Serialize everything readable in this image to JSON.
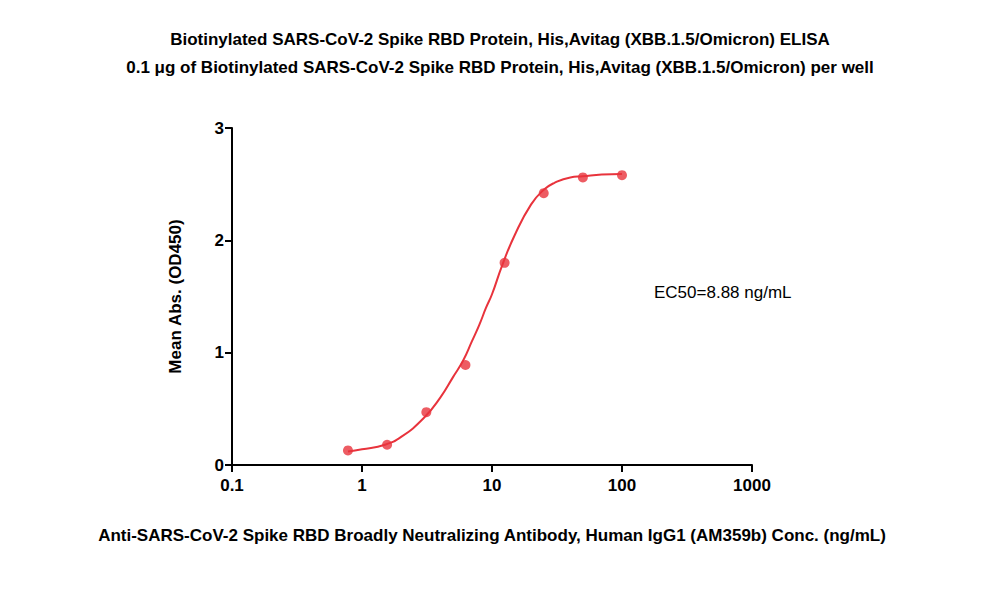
{
  "chart_data": {
    "type": "scatter",
    "title": "Biotinylated SARS-CoV-2 Spike RBD Protein, His,Avitag (XBB.1.5/Omicron) ELISA",
    "subtitle": "0.1 μg of Biotinylated SARS-CoV-2 Spike RBD Protein, His,Avitag (XBB.1.5/Omicron) per well",
    "x_label": "Anti-SARS-CoV-2 Spike RBD Broadly Neutralizing Antibody, Human IgG1 (AM359b) Conc. (ng/mL)",
    "y_label": "Mean Abs. (OD450)",
    "annotation": "EC50=8.88 ng/mL",
    "log": "x",
    "grid": false,
    "xlim": [
      0.1,
      1000
    ],
    "xticks": [
      0.1,
      1,
      10,
      100,
      1000
    ],
    "ylim": [
      0,
      3
    ],
    "yticks": [
      0,
      1,
      2,
      3
    ],
    "series": [
      {
        "type": "scatter",
        "marker": "circle",
        "color": "#e8333c",
        "x": [
          0.78,
          1.56,
          3.125,
          6.25,
          12.5,
          25,
          50,
          100
        ],
        "values": [
          0.13,
          0.18,
          0.47,
          0.89,
          1.8,
          2.42,
          2.56,
          2.58
        ]
      },
      {
        "type": "line",
        "line_style": "solid",
        "color": "#e8333c",
        "x": [
          0.78,
          1,
          1.5,
          2,
          3,
          4,
          5,
          6,
          7,
          8,
          9,
          10,
          12,
          15,
          20,
          25,
          30,
          40,
          50,
          70,
          100
        ],
        "values": [
          0.12,
          0.14,
          0.18,
          0.25,
          0.42,
          0.6,
          0.78,
          0.93,
          1.1,
          1.25,
          1.4,
          1.52,
          1.78,
          2.05,
          2.32,
          2.45,
          2.51,
          2.56,
          2.57,
          2.585,
          2.59
        ]
      }
    ]
  }
}
